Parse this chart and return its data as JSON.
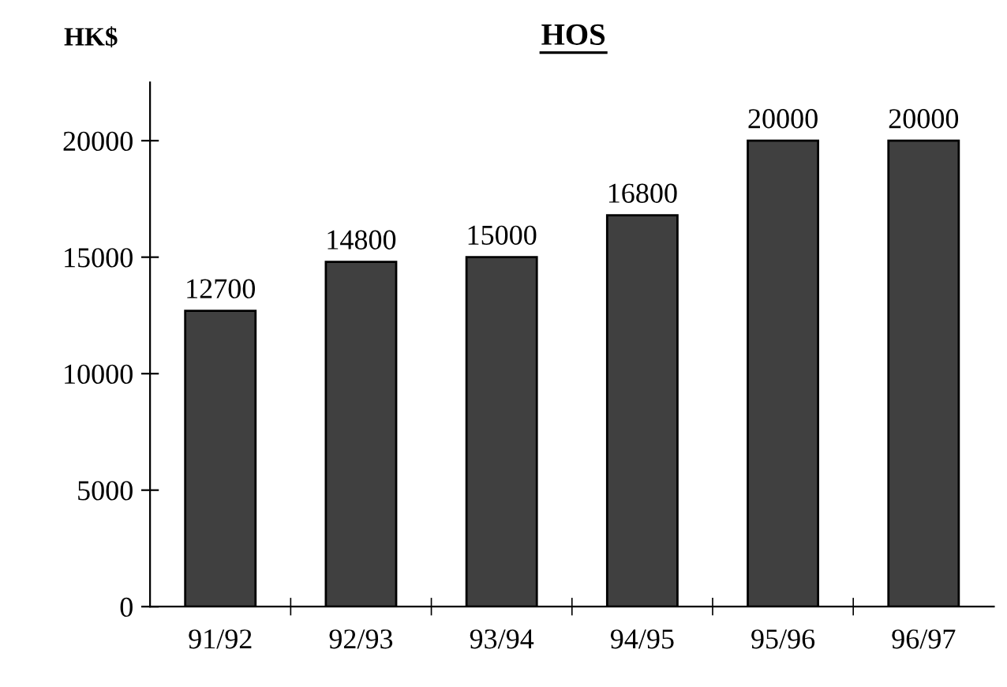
{
  "chart_data": {
    "type": "bar",
    "title": "HOS",
    "ylabel": "HK$",
    "categories": [
      "91/92",
      "92/93",
      "93/94",
      "94/95",
      "95/96",
      "96/97"
    ],
    "values": [
      12700,
      14800,
      15000,
      16800,
      20000,
      20000
    ],
    "color": "#404040",
    "ylim": [
      0,
      22500
    ],
    "yticks": [
      0,
      5000,
      10000,
      15000,
      20000
    ],
    "data_labels": true,
    "grid": false,
    "legend": false
  }
}
